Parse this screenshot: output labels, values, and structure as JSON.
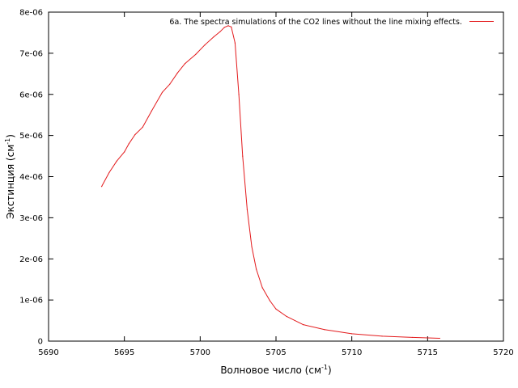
{
  "chart_data": {
    "type": "line",
    "title": "",
    "xlabel": "Волновое число (см",
    "xlabel_sup": "-1",
    "xlabel_end": ")",
    "ylabel": "Экстинция (см",
    "ylabel_sup": "-1",
    "ylabel_end": ")",
    "xlim": [
      5690,
      5720
    ],
    "ylim": [
      0,
      8e-06
    ],
    "x_ticks": [
      5690,
      5695,
      5700,
      5705,
      5710,
      5715,
      5720
    ],
    "x_tick_labels": [
      "5690",
      "5695",
      "5700",
      "5705",
      "5710",
      "5715",
      "5720"
    ],
    "y_ticks": [
      0,
      1e-06,
      2e-06,
      3e-06,
      4e-06,
      5e-06,
      6e-06,
      7e-06,
      8e-06
    ],
    "y_tick_labels": [
      "0",
      "1e-06",
      "2e-06",
      "3e-06",
      "4e-06",
      "5e-06",
      "6e-06",
      "7e-06",
      "8e-06"
    ],
    "grid": false,
    "legend_position": "top-right",
    "series": [
      {
        "name": "6a. The spectra simulations of the CO2 lines without the line mixing effects.",
        "color": "#e31a1c",
        "x": [
          5693.5,
          5694.0,
          5694.5,
          5695.0,
          5695.3,
          5695.7,
          5696.2,
          5696.8,
          5697.5,
          5698.0,
          5698.5,
          5699.0,
          5699.7,
          5700.3,
          5700.9,
          5701.3,
          5701.6,
          5701.85,
          5702.05,
          5702.3,
          5702.55,
          5702.8,
          5703.1,
          5703.4,
          5703.7,
          5704.1,
          5704.6,
          5705.0,
          5705.7,
          5706.8,
          5708.2,
          5710.0,
          5712.0,
          5714.0,
          5715.8
        ],
        "y": [
          3.76e-06,
          4.1e-06,
          4.38e-06,
          4.6e-06,
          4.8e-06,
          5.02e-06,
          5.2e-06,
          5.6e-06,
          6.05e-06,
          6.25e-06,
          6.52e-06,
          6.75e-06,
          6.97e-06,
          7.2e-06,
          7.4e-06,
          7.52e-06,
          7.63e-06,
          7.67e-06,
          7.64e-06,
          7.25e-06,
          6e-06,
          4.5e-06,
          3.2e-06,
          2.3e-06,
          1.75e-06,
          1.3e-06,
          9.8e-07,
          7.8e-07,
          6e-07,
          4e-07,
          2.8e-07,
          1.8e-07,
          1.2e-07,
          9e-08,
          7e-08
        ]
      }
    ]
  }
}
